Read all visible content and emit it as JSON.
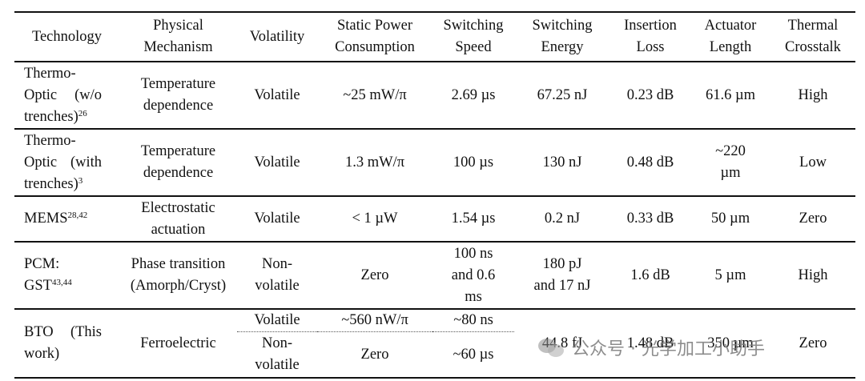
{
  "headers": [
    [
      "Technology"
    ],
    [
      "Physical",
      "Mechanism"
    ],
    [
      "Volatility"
    ],
    [
      "Static Power",
      "Consumption"
    ],
    [
      "Switching",
      "Speed"
    ],
    [
      "Switching",
      "Energy"
    ],
    [
      "Insertion",
      "Loss"
    ],
    [
      "Actuator",
      "Length"
    ],
    [
      "Thermal",
      "Crosstalk"
    ]
  ],
  "rows": [
    {
      "tech": [
        "Thermo-",
        "Optic (w/o",
        "trenches)"
      ],
      "tech_sup": "26",
      "mechanism": [
        "Temperature",
        "dependence"
      ],
      "volatility": "Volatile",
      "power": "~25 mW/π",
      "speed": [
        "2.69 µs"
      ],
      "energy": [
        "67.25 nJ"
      ],
      "loss": "0.23 dB",
      "length": [
        "61.6 µm"
      ],
      "crosstalk": "High"
    },
    {
      "tech": [
        "Thermo-",
        "Optic (with",
        "trenches)"
      ],
      "tech_sup": "3",
      "mechanism": [
        "Temperature",
        "dependence"
      ],
      "volatility": "Volatile",
      "power": "1.3 mW/π",
      "speed": [
        "100 µs"
      ],
      "energy": [
        "130 nJ"
      ],
      "loss": "0.48 dB",
      "length": [
        "~220",
        "µm"
      ],
      "crosstalk": "Low"
    },
    {
      "tech": [
        "MEMS"
      ],
      "tech_sup": "28,42",
      "mechanism": [
        "Electrostatic",
        "actuation"
      ],
      "volatility": "Volatile",
      "power": "< 1 µW",
      "speed": [
        "1.54 µs"
      ],
      "energy": [
        "0.2 nJ"
      ],
      "loss": "0.33 dB",
      "length": [
        "50 µm"
      ],
      "crosstalk": "Zero"
    },
    {
      "tech": [
        "PCM:",
        "GST"
      ],
      "tech_sup": "43,44",
      "mechanism": [
        "Phase transition",
        "(Amorph/Cryst)"
      ],
      "volatility": "Non-\nvolatile",
      "power": "Zero",
      "speed": [
        "100 ns",
        "and 0.6",
        "ms"
      ],
      "energy": [
        "180 pJ",
        "and 17 nJ"
      ],
      "loss": "1.6 dB",
      "length": [
        "5 µm"
      ],
      "crosstalk": "High"
    }
  ],
  "bto": {
    "tech": [
      "BTO (This",
      "work)"
    ],
    "mechanism": "Ferroelectric",
    "sub_rows": [
      {
        "volatility": [
          "Volatile"
        ],
        "power": "~560 nW/π",
        "speed": "~80 ns"
      },
      {
        "volatility": [
          "Non-",
          "volatile"
        ],
        "power": "Zero",
        "speed": "~60 µs"
      }
    ],
    "energy": "44.8 fJ",
    "loss": "1.48 dB",
    "length": "350 µm",
    "crosstalk": "Zero"
  },
  "watermark": {
    "text": "公众号 · 光学加工小助手",
    "icon": "wechat-icon"
  }
}
